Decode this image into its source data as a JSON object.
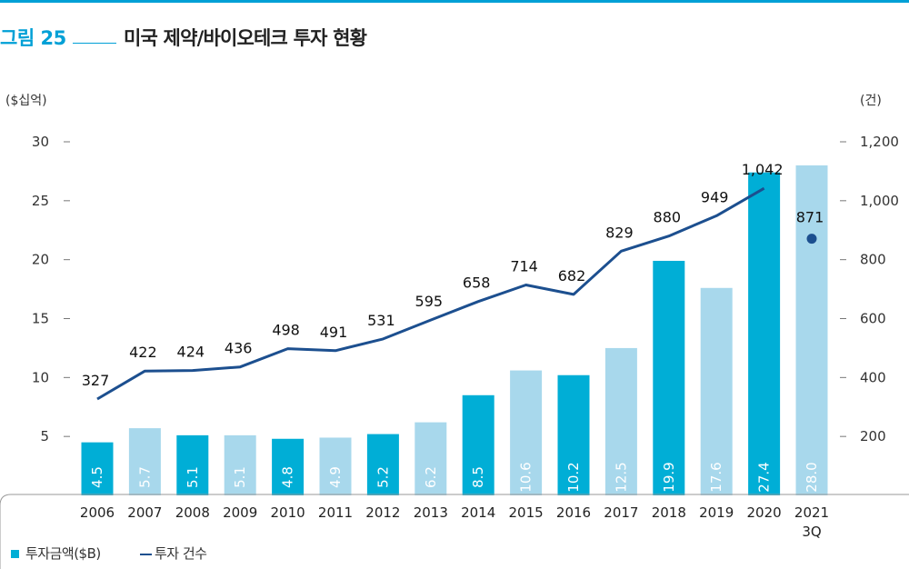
{
  "figure": {
    "label": "그림 25",
    "title": "미국 제약/바이오테크 투자 현황"
  },
  "colors": {
    "accent": "#00a0d6",
    "bar_dark": "#00aed6",
    "bar_light": "#a8d8ec",
    "line": "#1c4f8f",
    "text": "#222222"
  },
  "chart_data": {
    "type": "bar+line",
    "categories": [
      "2006",
      "2007",
      "2008",
      "2009",
      "2010",
      "2011",
      "2012",
      "2013",
      "2014",
      "2015",
      "2016",
      "2017",
      "2018",
      "2019",
      "2020",
      "2021\n3Q"
    ],
    "y_left_label": "($십억)",
    "y_left_ticks": [
      5,
      10,
      15,
      20,
      25,
      30
    ],
    "y_left_range": [
      0,
      30
    ],
    "y_right_label": "(건)",
    "y_right_ticks": [
      "200",
      "400",
      "600",
      "800",
      "1,000",
      "1,200"
    ],
    "y_right_tick_values": [
      200,
      400,
      600,
      800,
      1000,
      1200
    ],
    "y_right_range": [
      0,
      1200
    ],
    "series": [
      {
        "name": "투자금액($B)",
        "kind": "bar",
        "axis": "left",
        "values": [
          4.5,
          5.7,
          5.1,
          5.1,
          4.8,
          4.9,
          5.2,
          6.2,
          8.5,
          10.6,
          10.2,
          12.5,
          19.9,
          17.6,
          27.4,
          28.0
        ],
        "labels": [
          "4.5",
          "5.7",
          "5.1",
          "5.1",
          "4.8",
          "4.9",
          "5.2",
          "6.2",
          "8.5",
          "10.6",
          "10.2",
          "12.5",
          "19.9",
          "17.6",
          "27.4",
          "28.0"
        ],
        "shade": [
          "dark",
          "light",
          "dark",
          "light",
          "dark",
          "light",
          "dark",
          "light",
          "dark",
          "light",
          "dark",
          "light",
          "dark",
          "light",
          "dark",
          "light"
        ]
      },
      {
        "name": "투자 건수",
        "kind": "line",
        "axis": "right",
        "values": [
          327,
          422,
          424,
          436,
          498,
          491,
          531,
          595,
          658,
          714,
          682,
          829,
          880,
          949,
          1042,
          871
        ],
        "labels": [
          "327",
          "422",
          "424",
          "436",
          "498",
          "491",
          "531",
          "595",
          "658",
          "714",
          "682",
          "829",
          "880",
          "949",
          "1,042",
          "871"
        ],
        "line_points": 15,
        "marker_last": true
      }
    ]
  }
}
